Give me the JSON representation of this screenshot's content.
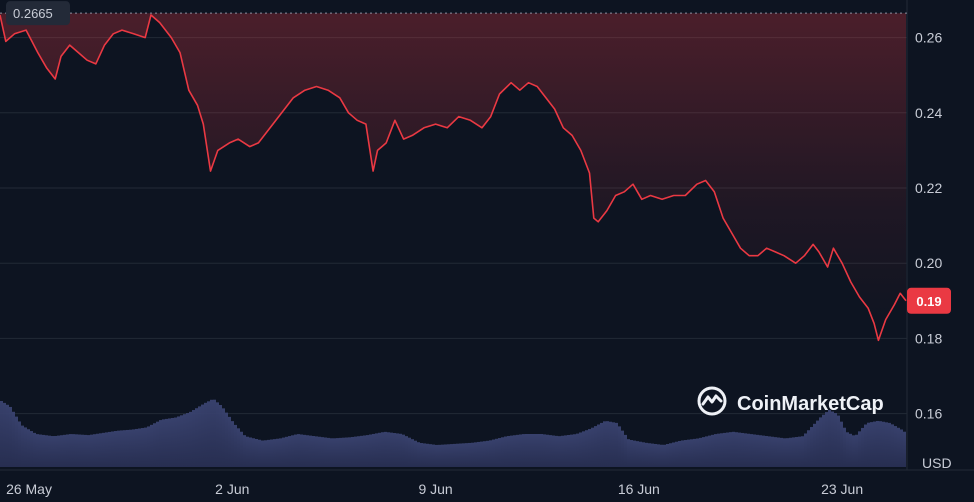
{
  "chart_data": {
    "type": "line",
    "currency": "USD",
    "x_tick_labels": [
      "26 May",
      "2 Jun",
      "9 Jun",
      "16 Jun",
      "23 Jun"
    ],
    "y_ticks": [
      0.16,
      0.18,
      0.2,
      0.22,
      0.24,
      0.26
    ],
    "y_tick_labels": [
      "0.16",
      "0.18",
      "0.20",
      "0.22",
      "0.24",
      "0.26"
    ],
    "ylim": [
      0.145,
      0.27
    ],
    "xlim": [
      0,
      31.2
    ],
    "high_line": {
      "value": 0.2665,
      "label": "0.2665"
    },
    "current_price": {
      "value": 0.19,
      "label": "0.19"
    },
    "series": [
      {
        "values": [
          [
            0.0,
            0.266
          ],
          [
            0.2,
            0.259
          ],
          [
            0.5,
            0.261
          ],
          [
            0.9,
            0.262
          ],
          [
            1.3,
            0.256
          ],
          [
            1.6,
            0.252
          ],
          [
            1.9,
            0.249
          ],
          [
            2.1,
            0.255
          ],
          [
            2.4,
            0.258
          ],
          [
            2.7,
            0.256
          ],
          [
            3.0,
            0.254
          ],
          [
            3.3,
            0.253
          ],
          [
            3.6,
            0.258
          ],
          [
            3.9,
            0.261
          ],
          [
            4.2,
            0.262
          ],
          [
            4.6,
            0.261
          ],
          [
            5.0,
            0.26
          ],
          [
            5.2,
            0.266
          ],
          [
            5.5,
            0.264
          ],
          [
            5.9,
            0.26
          ],
          [
            6.2,
            0.256
          ],
          [
            6.5,
            0.246
          ],
          [
            6.8,
            0.242
          ],
          [
            7.0,
            0.237
          ],
          [
            7.25,
            0.2245
          ],
          [
            7.5,
            0.23
          ],
          [
            7.9,
            0.232
          ],
          [
            8.2,
            0.233
          ],
          [
            8.6,
            0.231
          ],
          [
            8.9,
            0.232
          ],
          [
            9.3,
            0.236
          ],
          [
            9.7,
            0.24
          ],
          [
            10.1,
            0.244
          ],
          [
            10.5,
            0.246
          ],
          [
            10.9,
            0.247
          ],
          [
            11.3,
            0.246
          ],
          [
            11.7,
            0.244
          ],
          [
            12.0,
            0.24
          ],
          [
            12.3,
            0.238
          ],
          [
            12.6,
            0.237
          ],
          [
            12.85,
            0.2245
          ],
          [
            13.0,
            0.23
          ],
          [
            13.3,
            0.232
          ],
          [
            13.6,
            0.238
          ],
          [
            13.9,
            0.233
          ],
          [
            14.2,
            0.234
          ],
          [
            14.6,
            0.236
          ],
          [
            15.0,
            0.237
          ],
          [
            15.4,
            0.236
          ],
          [
            15.8,
            0.239
          ],
          [
            16.2,
            0.238
          ],
          [
            16.6,
            0.236
          ],
          [
            16.9,
            0.239
          ],
          [
            17.2,
            0.245
          ],
          [
            17.6,
            0.248
          ],
          [
            17.9,
            0.246
          ],
          [
            18.2,
            0.248
          ],
          [
            18.5,
            0.247
          ],
          [
            18.8,
            0.244
          ],
          [
            19.1,
            0.241
          ],
          [
            19.4,
            0.236
          ],
          [
            19.7,
            0.234
          ],
          [
            20.0,
            0.23
          ],
          [
            20.3,
            0.224
          ],
          [
            20.45,
            0.212
          ],
          [
            20.6,
            0.211
          ],
          [
            20.9,
            0.214
          ],
          [
            21.2,
            0.218
          ],
          [
            21.5,
            0.219
          ],
          [
            21.8,
            0.221
          ],
          [
            22.1,
            0.217
          ],
          [
            22.4,
            0.218
          ],
          [
            22.8,
            0.217
          ],
          [
            23.2,
            0.218
          ],
          [
            23.6,
            0.218
          ],
          [
            24.0,
            0.221
          ],
          [
            24.3,
            0.222
          ],
          [
            24.6,
            0.219
          ],
          [
            24.9,
            0.212
          ],
          [
            25.2,
            0.208
          ],
          [
            25.5,
            0.204
          ],
          [
            25.8,
            0.202
          ],
          [
            26.1,
            0.202
          ],
          [
            26.4,
            0.204
          ],
          [
            26.7,
            0.203
          ],
          [
            27.0,
            0.202
          ],
          [
            27.4,
            0.2
          ],
          [
            27.7,
            0.202
          ],
          [
            28.0,
            0.205
          ],
          [
            28.2,
            0.203
          ],
          [
            28.5,
            0.199
          ],
          [
            28.7,
            0.204
          ],
          [
            29.0,
            0.2
          ],
          [
            29.3,
            0.195
          ],
          [
            29.6,
            0.191
          ],
          [
            29.9,
            0.188
          ],
          [
            30.1,
            0.184
          ],
          [
            30.25,
            0.1795
          ],
          [
            30.5,
            0.185
          ],
          [
            30.8,
            0.189
          ],
          [
            31.0,
            0.192
          ],
          [
            31.2,
            0.19
          ]
        ]
      }
    ],
    "volume": [
      [
        0.0,
        0.6
      ],
      [
        0.3,
        0.55
      ],
      [
        0.7,
        0.38
      ],
      [
        1.2,
        0.3
      ],
      [
        1.8,
        0.28
      ],
      [
        2.4,
        0.3
      ],
      [
        3.0,
        0.29
      ],
      [
        3.5,
        0.31
      ],
      [
        4.0,
        0.33
      ],
      [
        4.5,
        0.34
      ],
      [
        5.0,
        0.36
      ],
      [
        5.5,
        0.43
      ],
      [
        6.0,
        0.45
      ],
      [
        6.5,
        0.5
      ],
      [
        7.0,
        0.58
      ],
      [
        7.3,
        0.62
      ],
      [
        7.6,
        0.55
      ],
      [
        8.0,
        0.4
      ],
      [
        8.4,
        0.28
      ],
      [
        9.0,
        0.24
      ],
      [
        9.6,
        0.26
      ],
      [
        10.2,
        0.3
      ],
      [
        10.8,
        0.28
      ],
      [
        11.4,
        0.26
      ],
      [
        12.0,
        0.27
      ],
      [
        12.6,
        0.29
      ],
      [
        13.2,
        0.32
      ],
      [
        13.8,
        0.3
      ],
      [
        14.4,
        0.22
      ],
      [
        15.0,
        0.2
      ],
      [
        15.6,
        0.21
      ],
      [
        16.2,
        0.22
      ],
      [
        16.8,
        0.24
      ],
      [
        17.4,
        0.28
      ],
      [
        18.0,
        0.3
      ],
      [
        18.6,
        0.3
      ],
      [
        19.2,
        0.28
      ],
      [
        19.8,
        0.3
      ],
      [
        20.3,
        0.35
      ],
      [
        20.8,
        0.42
      ],
      [
        21.2,
        0.4
      ],
      [
        21.6,
        0.25
      ],
      [
        22.2,
        0.22
      ],
      [
        22.8,
        0.2
      ],
      [
        23.4,
        0.24
      ],
      [
        24.0,
        0.26
      ],
      [
        24.6,
        0.3
      ],
      [
        25.2,
        0.32
      ],
      [
        25.8,
        0.3
      ],
      [
        26.4,
        0.28
      ],
      [
        27.0,
        0.26
      ],
      [
        27.6,
        0.28
      ],
      [
        28.2,
        0.45
      ],
      [
        28.5,
        0.52
      ],
      [
        28.8,
        0.48
      ],
      [
        29.1,
        0.32
      ],
      [
        29.4,
        0.28
      ],
      [
        29.8,
        0.4
      ],
      [
        30.2,
        0.42
      ],
      [
        30.6,
        0.4
      ],
      [
        31.0,
        0.34
      ],
      [
        31.2,
        0.3
      ]
    ]
  },
  "branding": {
    "name": "CoinMarketCap",
    "icon": "coinmarketcap-logo-icon"
  },
  "colors": {
    "background": "#0d1421",
    "line": "#ea3943",
    "price_tag": "#ea3943",
    "volume": "#3a4370",
    "grid": "#222a36"
  }
}
